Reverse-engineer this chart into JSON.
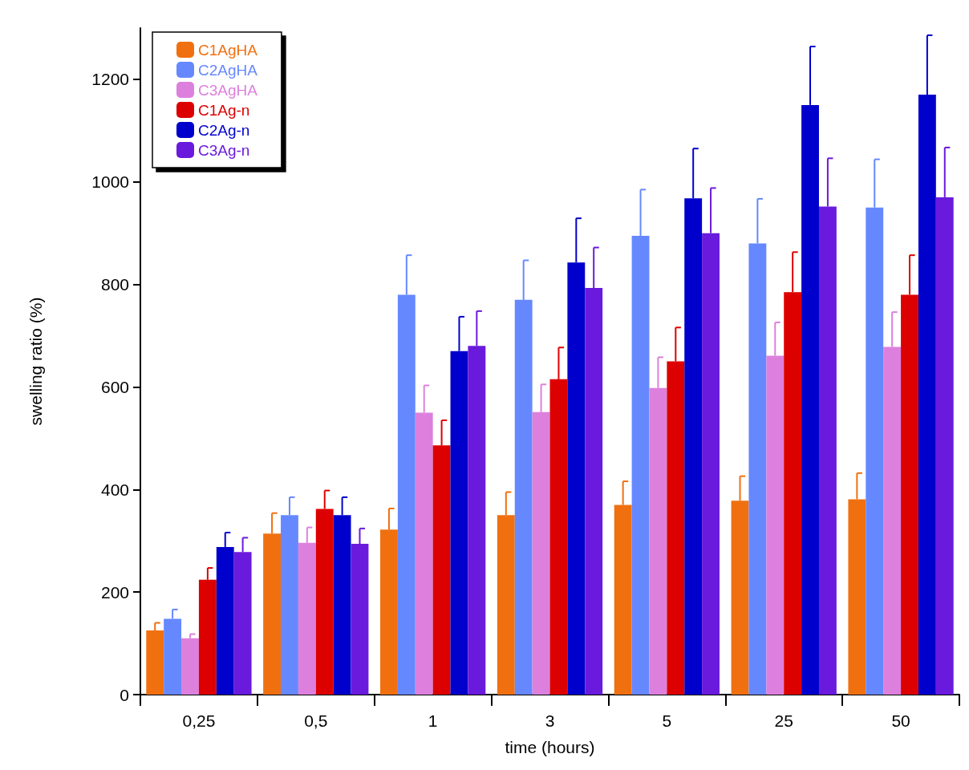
{
  "chart_data": {
    "type": "bar",
    "xlabel": "time (hours)",
    "ylabel": "swelling ratio (%)",
    "categories": [
      "0,25",
      "0,5",
      "1",
      "3",
      "5",
      "25",
      "50"
    ],
    "series": [
      {
        "name": "C1AgHA",
        "color": "#f07010",
        "values": [
          125,
          314,
          322,
          350,
          370,
          378,
          381
        ],
        "errors": [
          [
            125,
            140
          ],
          [
            314,
            354
          ],
          [
            322,
            363
          ],
          [
            350,
            395
          ],
          [
            370,
            416
          ],
          [
            378,
            426
          ],
          [
            381,
            432
          ]
        ]
      },
      {
        "name": "C2AgHA",
        "color": "#6688ff",
        "values": [
          148,
          350,
          780,
          770,
          895,
          880,
          950
        ],
        "errors": [
          [
            148,
            166
          ],
          [
            350,
            385
          ],
          [
            780,
            857
          ],
          [
            770,
            847
          ],
          [
            895,
            985
          ],
          [
            880,
            967
          ],
          [
            950,
            1044
          ]
        ]
      },
      {
        "name": "C3AgHA",
        "color": "#dd80dd",
        "values": [
          110,
          296,
          550,
          551,
          598,
          661,
          678
        ],
        "errors": [
          [
            110,
            118
          ],
          [
            296,
            326
          ],
          [
            550,
            603
          ],
          [
            551,
            605
          ],
          [
            598,
            658
          ],
          [
            661,
            726
          ],
          [
            678,
            746
          ]
        ]
      },
      {
        "name": "C1Ag-n",
        "color": "#dd0000",
        "values": [
          224,
          362,
          486,
          615,
          650,
          785,
          780
        ],
        "errors": [
          [
            224,
            247
          ],
          [
            362,
            398
          ],
          [
            486,
            535
          ],
          [
            615,
            677
          ],
          [
            650,
            716
          ],
          [
            785,
            863
          ],
          [
            780,
            857
          ]
        ]
      },
      {
        "name": "C2Ag-n",
        "color": "#0000cc",
        "values": [
          288,
          350,
          670,
          843,
          968,
          1150,
          1170
        ],
        "errors": [
          [
            288,
            316
          ],
          [
            350,
            385
          ],
          [
            670,
            737
          ],
          [
            843,
            929
          ],
          [
            968,
            1065
          ],
          [
            1150,
            1264
          ],
          [
            1170,
            1286
          ]
        ]
      },
      {
        "name": "C3Ag-n",
        "color": "#6a1adc",
        "values": [
          278,
          294,
          680,
          793,
          900,
          952,
          970
        ],
        "errors": [
          [
            278,
            306
          ],
          [
            294,
            324
          ],
          [
            680,
            748
          ],
          [
            793,
            872
          ],
          [
            900,
            988
          ],
          [
            952,
            1046
          ],
          [
            970,
            1067
          ]
        ]
      }
    ],
    "ylim": [
      0,
      1300
    ],
    "yticks": [
      0,
      200,
      400,
      600,
      800,
      1000,
      1200
    ],
    "grid": false,
    "legend": "top left"
  }
}
